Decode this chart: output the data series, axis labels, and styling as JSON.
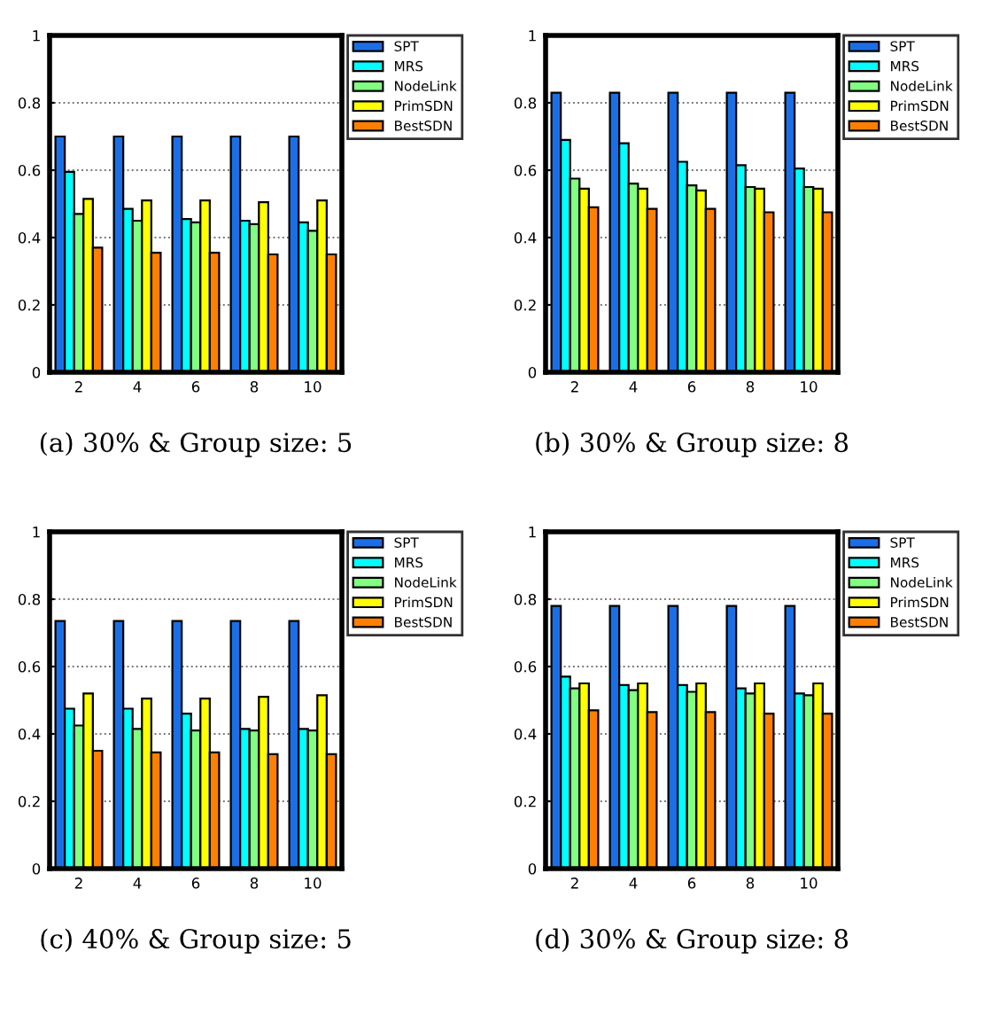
{
  "chart_data": [
    {
      "type": "bar",
      "title": "(a) 30% & Group size: 5",
      "categories": [
        "2",
        "4",
        "6",
        "8",
        "10"
      ],
      "ylim": [
        0,
        1
      ],
      "yticks": [
        0,
        {
          "value": 0.2,
          "label": "0.2"
        },
        {
          "value": 0.4,
          "label": "0.4"
        },
        {
          "value": 0.6,
          "label": "0.6"
        },
        {
          "value": 0.8,
          "label": "0.8"
        },
        1
      ],
      "grid": "y",
      "legend": "top right",
      "series": [
        {
          "name": "SPT",
          "color": "#1a6fe6",
          "values": [
            0.7,
            0.7,
            0.7,
            0.7,
            0.7
          ]
        },
        {
          "name": "MRS",
          "color": "#00ffff",
          "values": [
            0.595,
            0.485,
            0.455,
            0.45,
            0.445
          ]
        },
        {
          "name": "NodeLink",
          "color": "#80ff80",
          "values": [
            0.47,
            0.45,
            0.445,
            0.44,
            0.42
          ]
        },
        {
          "name": "PrimSDN",
          "color": "#ffff00",
          "values": [
            0.515,
            0.51,
            0.51,
            0.505,
            0.51
          ]
        },
        {
          "name": "BestSDN",
          "color": "#ff8000",
          "values": [
            0.37,
            0.355,
            0.355,
            0.35,
            0.35
          ]
        }
      ]
    },
    {
      "type": "bar",
      "title": "(b) 30% & Group size: 8",
      "categories": [
        "2",
        "4",
        "6",
        "8",
        "10"
      ],
      "ylim": [
        0,
        1
      ],
      "yticks": [
        0,
        {
          "value": 0.2,
          "label": "0.2"
        },
        {
          "value": 0.4,
          "label": "0.4"
        },
        {
          "value": 0.6,
          "label": "0.6"
        },
        {
          "value": 0.8,
          "label": "0.8"
        },
        1
      ],
      "grid": "y",
      "legend": "top right",
      "series": [
        {
          "name": "SPT",
          "color": "#1a6fe6",
          "values": [
            0.83,
            0.83,
            0.83,
            0.83,
            0.83
          ]
        },
        {
          "name": "MRS",
          "color": "#00ffff",
          "values": [
            0.69,
            0.68,
            0.625,
            0.615,
            0.605
          ]
        },
        {
          "name": "NodeLink",
          "color": "#80ff80",
          "values": [
            0.575,
            0.56,
            0.555,
            0.55,
            0.55
          ]
        },
        {
          "name": "PrimSDN",
          "color": "#ffff00",
          "values": [
            0.545,
            0.545,
            0.54,
            0.545,
            0.545
          ]
        },
        {
          "name": "BestSDN",
          "color": "#ff8000",
          "values": [
            0.49,
            0.485,
            0.485,
            0.475,
            0.475
          ]
        }
      ]
    },
    {
      "type": "bar",
      "title": "(c) 40% & Group size: 5",
      "categories": [
        "2",
        "4",
        "6",
        "8",
        "10"
      ],
      "ylim": [
        0,
        1
      ],
      "yticks": [
        0,
        {
          "value": 0.2,
          "label": "0.2"
        },
        {
          "value": 0.4,
          "label": "0.4"
        },
        {
          "value": 0.6,
          "label": "0.6"
        },
        {
          "value": 0.8,
          "label": "0.8"
        },
        1
      ],
      "grid": "y",
      "legend": "top right",
      "series": [
        {
          "name": "SPT",
          "color": "#1a6fe6",
          "values": [
            0.735,
            0.735,
            0.735,
            0.735,
            0.735
          ]
        },
        {
          "name": "MRS",
          "color": "#00ffff",
          "values": [
            0.475,
            0.475,
            0.46,
            0.415,
            0.415
          ]
        },
        {
          "name": "NodeLink",
          "color": "#80ff80",
          "values": [
            0.425,
            0.415,
            0.41,
            0.41,
            0.41
          ]
        },
        {
          "name": "PrimSDN",
          "color": "#ffff00",
          "values": [
            0.52,
            0.505,
            0.505,
            0.51,
            0.515
          ]
        },
        {
          "name": "BestSDN",
          "color": "#ff8000",
          "values": [
            0.35,
            0.345,
            0.345,
            0.34,
            0.34
          ]
        }
      ]
    },
    {
      "type": "bar",
      "title": "(d) 30% & Group size: 8",
      "categories": [
        "2",
        "4",
        "6",
        "8",
        "10"
      ],
      "ylim": [
        0,
        1
      ],
      "yticks": [
        0,
        {
          "value": 0.2,
          "label": "0.2"
        },
        {
          "value": 0.4,
          "label": "0.4"
        },
        {
          "value": 0.6,
          "label": "0.6"
        },
        {
          "value": 0.8,
          "label": "0.8"
        },
        1
      ],
      "grid": "y",
      "legend": "top right",
      "series": [
        {
          "name": "SPT",
          "color": "#1a6fe6",
          "values": [
            0.78,
            0.78,
            0.78,
            0.78,
            0.78
          ]
        },
        {
          "name": "MRS",
          "color": "#00ffff",
          "values": [
            0.57,
            0.545,
            0.545,
            0.535,
            0.52
          ]
        },
        {
          "name": "NodeLink",
          "color": "#80ff80",
          "values": [
            0.535,
            0.53,
            0.525,
            0.52,
            0.515
          ]
        },
        {
          "name": "PrimSDN",
          "color": "#ffff00",
          "values": [
            0.55,
            0.55,
            0.55,
            0.55,
            0.55
          ]
        },
        {
          "name": "BestSDN",
          "color": "#ff8000",
          "values": [
            0.47,
            0.465,
            0.465,
            0.46,
            0.46
          ]
        }
      ]
    }
  ]
}
